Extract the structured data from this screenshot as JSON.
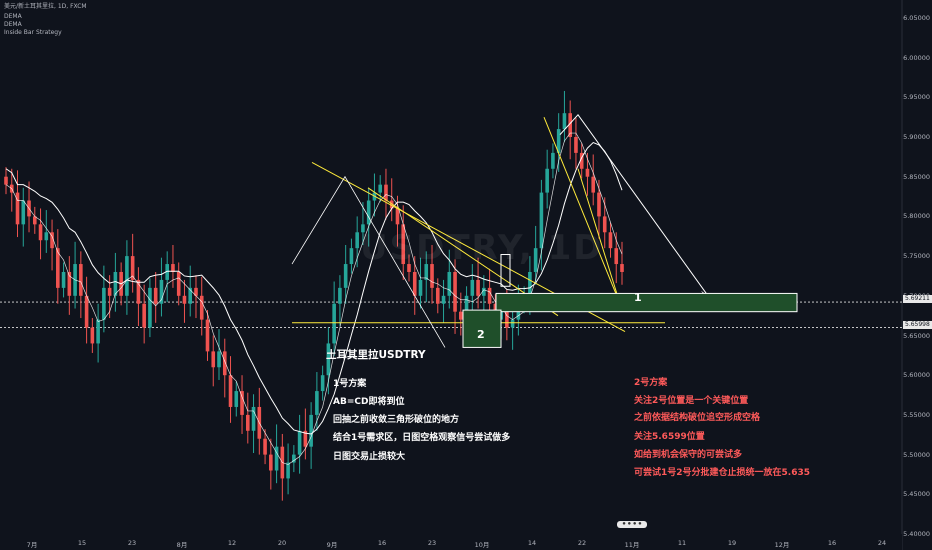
{
  "header": {
    "symbol_line": "美元/新土耳其里拉, 1D, FXCM",
    "indicator_1": "DEMA",
    "indicator_2": "DEMA",
    "indicator_3": "Inside Bar Strategy"
  },
  "watermark": "USDTRY, 1D",
  "annotations": {
    "title": "土耳其里拉USDTRY",
    "plan1": [
      "1号方案",
      "AB=CD即将到位",
      "回抽之前收敛三角形破位的地方",
      "结合1号需求区，日图空格观察信号尝试做多",
      "日图交易止损较大"
    ],
    "plan2": [
      "2号方案",
      "关注2号位置是一个关键位置",
      "之前依据结构破位追空形成空格",
      "关注5.6599位置",
      "如给到机会保守的可尝试多",
      "可尝试1号2号分批建仓止损统一放在5.635"
    ],
    "zone1_label": "1",
    "zone2_label": "2"
  },
  "price_tags": [
    "5.69211",
    "5.65998"
  ],
  "colors": {
    "background": "#0f131c",
    "up": "#26a69a",
    "down": "#ef5350",
    "trendline": "#ffeb3b",
    "ma": "#ffffff",
    "zone_fill": "#1f4f2a",
    "plan2_text": "#ff5a5a"
  },
  "chart_data": {
    "type": "candlestick",
    "symbol": "USDTRY",
    "timeframe": "1D",
    "y_axis": {
      "ticks": [
        "6.05000",
        "6.00000",
        "5.95000",
        "5.90000",
        "5.85000",
        "5.80000",
        "5.75000",
        "5.70000",
        "5.65000",
        "5.60000",
        "5.55000",
        "5.50000",
        "5.45000",
        "5.40000"
      ],
      "range": [
        5.4,
        6.065
      ]
    },
    "x_axis": {
      "ticks": [
        "7月",
        "15",
        "23",
        "8月",
        "12",
        "20",
        "9月",
        "16",
        "23",
        "10月",
        "14",
        "22",
        "11月",
        "11",
        "19",
        "12月",
        "16",
        "24"
      ]
    },
    "levels": [
      5.69211,
      5.65998
    ],
    "series": [
      {
        "name": "closes",
        "values": [
          5.84,
          5.83,
          5.79,
          5.82,
          5.8,
          5.79,
          5.77,
          5.78,
          5.76,
          5.71,
          5.73,
          5.7,
          5.74,
          5.7,
          5.66,
          5.64,
          5.67,
          5.71,
          5.7,
          5.73,
          5.7,
          5.75,
          5.72,
          5.69,
          5.66,
          5.71,
          5.69,
          5.72,
          5.74,
          5.73,
          5.7,
          5.69,
          5.71,
          5.7,
          5.67,
          5.63,
          5.61,
          5.63,
          5.6,
          5.56,
          5.58,
          5.55,
          5.53,
          5.56,
          5.52,
          5.5,
          5.48,
          5.51,
          5.47,
          5.49,
          5.5,
          5.53,
          5.51,
          5.55,
          5.58,
          5.6,
          5.64,
          5.69,
          5.71,
          5.74,
          5.76,
          5.78,
          5.79,
          5.82,
          5.83,
          5.84,
          5.82,
          5.81,
          5.79,
          5.74,
          5.73,
          5.7,
          5.72,
          5.74,
          5.71,
          5.69,
          5.7,
          5.73,
          5.68,
          5.67,
          5.7,
          5.72,
          5.7,
          5.71,
          5.69,
          5.67,
          5.68,
          5.66,
          5.67,
          5.69,
          5.7,
          5.73,
          5.76,
          5.83,
          5.86,
          5.88,
          5.91,
          5.93,
          5.9,
          5.88,
          5.86,
          5.85,
          5.83,
          5.8,
          5.78,
          5.76,
          5.74,
          5.73
        ]
      }
    ]
  }
}
